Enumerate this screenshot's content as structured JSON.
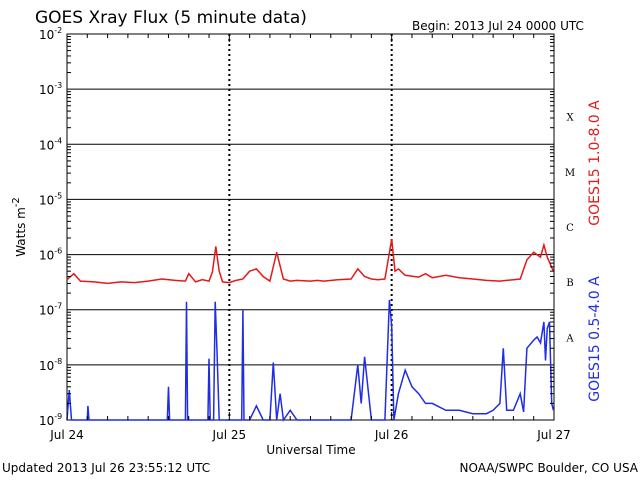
{
  "header": {
    "title": "GOES Xray Flux (5 minute data)",
    "begin": "Begin:  2013 Jul 24 0000 UTC"
  },
  "footer": {
    "updated": "Updated 2013 Jul 26 23:55:12 UTC",
    "credit": "NOAA/SWPC Boulder, CO USA"
  },
  "chart_data": {
    "type": "line",
    "title": "GOES Xray Flux (5 minute data)",
    "xlabel": "Universal Time",
    "ylabel": "Watts m",
    "ylabel_superscript": "-2",
    "yscale": "log",
    "ylim": [
      1e-09,
      0.01
    ],
    "xlim": [
      "2013-07-24 00:00",
      "2013-07-27 00:00"
    ],
    "x_ticks": [
      "Jul 24",
      "Jul 25",
      "Jul 26",
      "Jul 27"
    ],
    "y_ticks": [
      {
        "base": "10",
        "exp": "-9"
      },
      {
        "base": "10",
        "exp": "-8"
      },
      {
        "base": "10",
        "exp": "-7"
      },
      {
        "base": "10",
        "exp": "-6"
      },
      {
        "base": "10",
        "exp": "-5"
      },
      {
        "base": "10",
        "exp": "-4"
      },
      {
        "base": "10",
        "exp": "-3"
      },
      {
        "base": "10",
        "exp": "-2"
      }
    ],
    "flare_classes": [
      {
        "label": "X",
        "flux": 0.0001
      },
      {
        "label": "M",
        "flux": 1e-05
      },
      {
        "label": "C",
        "flux": 1e-06
      },
      {
        "label": "B",
        "flux": 1e-07
      },
      {
        "label": "A",
        "flux": 1e-08
      }
    ],
    "grid": true,
    "series": [
      {
        "name": "GOES15 1.0-8.0 A",
        "color": "#e41a1a",
        "x": [
          "2013-07-24 00:00",
          "2013-07-24 01:00",
          "2013-07-24 02:00",
          "2013-07-24 04:00",
          "2013-07-24 06:00",
          "2013-07-24 08:00",
          "2013-07-24 10:00",
          "2013-07-24 12:00",
          "2013-07-24 14:00",
          "2013-07-24 16:00",
          "2013-07-24 17:30",
          "2013-07-24 18:00",
          "2013-07-24 19:00",
          "2013-07-24 20:00",
          "2013-07-24 21:00",
          "2013-07-24 21:30",
          "2013-07-24 22:00",
          "2013-07-24 22:30",
          "2013-07-24 23:00",
          "2013-07-25 00:00",
          "2013-07-25 01:00",
          "2013-07-25 02:00",
          "2013-07-25 03:00",
          "2013-07-25 04:00",
          "2013-07-25 05:00",
          "2013-07-25 06:00",
          "2013-07-25 07:00",
          "2013-07-25 08:00",
          "2013-07-25 09:00",
          "2013-07-25 10:00",
          "2013-07-25 12:00",
          "2013-07-25 13:00",
          "2013-07-25 14:00",
          "2013-07-25 16:00",
          "2013-07-25 18:00",
          "2013-07-25 19:00",
          "2013-07-25 20:00",
          "2013-07-25 21:00",
          "2013-07-25 22:00",
          "2013-07-25 23:00",
          "2013-07-26 00:00",
          "2013-07-26 00:30",
          "2013-07-26 01:00",
          "2013-07-26 02:00",
          "2013-07-26 04:00",
          "2013-07-26 05:00",
          "2013-07-26 06:00",
          "2013-07-26 08:00",
          "2013-07-26 10:00",
          "2013-07-26 12:00",
          "2013-07-26 14:00",
          "2013-07-26 16:00",
          "2013-07-26 18:00",
          "2013-07-26 19:00",
          "2013-07-26 20:00",
          "2013-07-26 21:00",
          "2013-07-26 22:00",
          "2013-07-26 22:30",
          "2013-07-26 23:00",
          "2013-07-26 23:55"
        ],
        "values": [
          3.5e-07,
          4.5e-07,
          3.3e-07,
          3.2e-07,
          3e-07,
          3.2e-07,
          3.1e-07,
          3.3e-07,
          3.6e-07,
          3.4e-07,
          3.3e-07,
          4.5e-07,
          3.2e-07,
          3.5e-07,
          3.3e-07,
          4.8e-07,
          1.4e-06,
          5e-07,
          3.2e-07,
          3.1e-07,
          3.4e-07,
          3.6e-07,
          5e-07,
          5.5e-07,
          4e-07,
          3.3e-07,
          1.1e-06,
          3.6e-07,
          3.3e-07,
          3.4e-07,
          3.3e-07,
          3.4e-07,
          3.3e-07,
          3.5e-07,
          3.6e-07,
          5.5e-07,
          4e-07,
          3.6e-07,
          3.5e-07,
          3.6e-07,
          1.9e-06,
          5e-07,
          5.5e-07,
          4.2e-07,
          3.9e-07,
          4.5e-07,
          3.8e-07,
          4.2e-07,
          3.8e-07,
          3.6e-07,
          3.4e-07,
          3.3e-07,
          3.5e-07,
          3.6e-07,
          8e-07,
          1.1e-06,
          9e-07,
          1.5e-06,
          9e-07,
          5e-07
        ]
      },
      {
        "name": "GOES15 0.5-4.0 A",
        "color": "#1f2de4",
        "x": [
          "2013-07-24 00:00",
          "2013-07-24 00:20",
          "2013-07-24 00:40",
          "2013-07-24 01:00",
          "2013-07-24 03:00",
          "2013-07-24 03:05",
          "2013-07-24 03:15",
          "2013-07-24 06:00",
          "2013-07-24 12:00",
          "2013-07-24 14:50",
          "2013-07-24 15:00",
          "2013-07-24 15:10",
          "2013-07-24 17:30",
          "2013-07-24 17:40",
          "2013-07-24 17:50",
          "2013-07-24 18:00",
          "2013-07-24 18:10",
          "2013-07-24 20:50",
          "2013-07-24 21:00",
          "2013-07-24 21:10",
          "2013-07-24 21:40",
          "2013-07-24 21:55",
          "2013-07-24 22:10",
          "2013-07-24 22:30",
          "2013-07-24 22:45",
          "2013-07-24 23:00",
          "2013-07-25 00:00",
          "2013-07-25 01:50",
          "2013-07-25 02:00",
          "2013-07-25 02:10",
          "2013-07-25 03:00",
          "2013-07-25 04:00",
          "2013-07-25 05:00",
          "2013-07-25 06:00",
          "2013-07-25 06:30",
          "2013-07-25 07:00",
          "2013-07-25 07:30",
          "2013-07-25 08:00",
          "2013-07-25 09:00",
          "2013-07-25 10:00",
          "2013-07-25 11:00",
          "2013-07-25 14:00",
          "2013-07-25 16:00",
          "2013-07-25 18:00",
          "2013-07-25 19:00",
          "2013-07-25 19:30",
          "2013-07-25 20:00",
          "2013-07-25 21:00",
          "2013-07-25 22:00",
          "2013-07-25 23:00",
          "2013-07-25 23:40",
          "2013-07-26 00:00",
          "2013-07-26 00:20",
          "2013-07-26 01:00",
          "2013-07-26 02:00",
          "2013-07-26 03:00",
          "2013-07-26 04:00",
          "2013-07-26 05:00",
          "2013-07-26 06:00",
          "2013-07-26 08:00",
          "2013-07-26 10:00",
          "2013-07-26 12:00",
          "2013-07-26 14:00",
          "2013-07-26 15:00",
          "2013-07-26 16:00",
          "2013-07-26 16:30",
          "2013-07-26 17:00",
          "2013-07-26 18:00",
          "2013-07-26 19:00",
          "2013-07-26 19:30",
          "2013-07-26 20:00",
          "2013-07-26 21:00",
          "2013-07-26 21:30",
          "2013-07-26 22:00",
          "2013-07-26 22:30",
          "2013-07-26 22:45",
          "2013-07-26 23:00",
          "2013-07-26 23:20",
          "2013-07-26 23:40",
          "2013-07-26 23:55"
        ],
        "values": [
          1e-09,
          3.5e-09,
          1e-09,
          1e-09,
          1e-09,
          1.8e-09,
          1e-09,
          1e-09,
          1e-09,
          1e-09,
          4e-09,
          1e-09,
          1e-09,
          1.4e-07,
          1e-09,
          1e-09,
          1e-09,
          1e-09,
          1.3e-08,
          1e-09,
          1e-09,
          1.4e-07,
          2e-08,
          1e-09,
          1e-09,
          1e-09,
          1e-09,
          1e-09,
          1e-07,
          1e-09,
          1e-09,
          1.8e-09,
          1e-09,
          1e-09,
          1.1e-08,
          1e-09,
          3e-09,
          1e-09,
          1.5e-09,
          1e-09,
          1e-09,
          1e-09,
          1e-09,
          1e-09,
          1e-08,
          2e-09,
          1.4e-08,
          1e-09,
          1e-09,
          1e-09,
          1.5e-07,
          5e-08,
          1e-09,
          3e-09,
          8e-09,
          4e-09,
          3e-09,
          2e-09,
          2e-09,
          1.5e-09,
          1.5e-09,
          1.3e-09,
          1.3e-09,
          1.5e-09,
          2e-09,
          2e-08,
          1.5e-09,
          1.5e-09,
          3e-09,
          1.4e-09,
          2e-08,
          2.8e-08,
          3.2e-08,
          2.5e-08,
          6e-08,
          1.2e-08,
          4.5e-08,
          6e-08,
          2e-09,
          1.5e-09
        ]
      }
    ]
  }
}
